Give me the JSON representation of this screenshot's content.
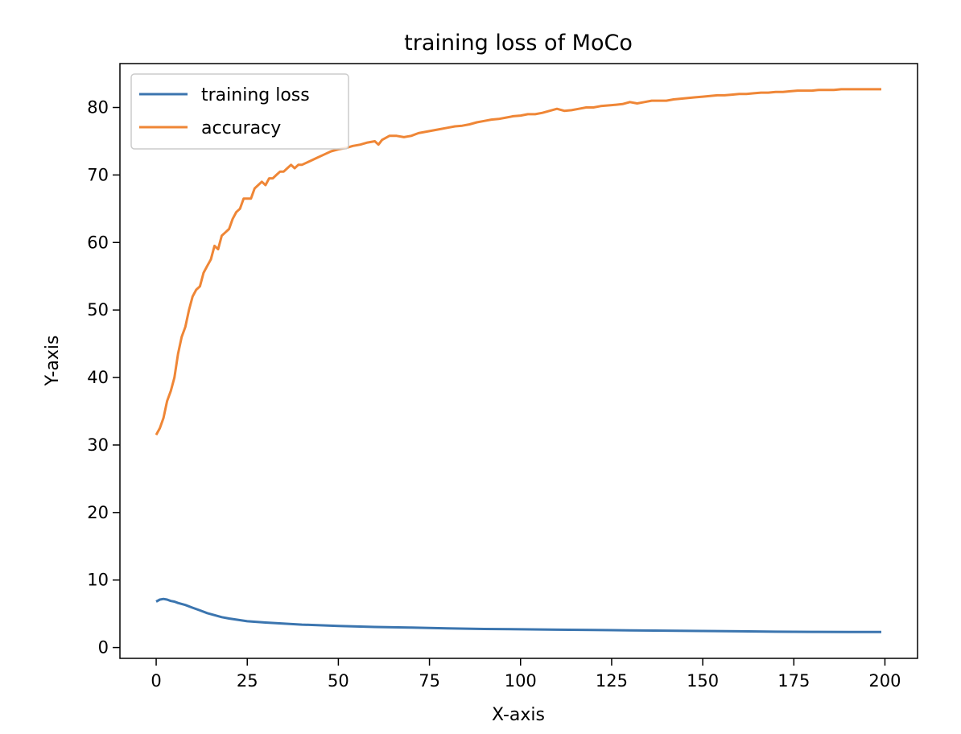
{
  "chart_data": {
    "type": "line",
    "title": "training loss of MoCo",
    "xlabel": "X-axis",
    "ylabel": "Y-axis",
    "xlim": [
      -9.95,
      208.95
    ],
    "ylim": [
      -1.6,
      86.5
    ],
    "xticks": [
      0,
      25,
      50,
      75,
      100,
      125,
      150,
      175,
      200
    ],
    "yticks": [
      0,
      10,
      20,
      30,
      40,
      50,
      60,
      70,
      80
    ],
    "grid": false,
    "legend_position": "top-left",
    "series": [
      {
        "name": "training loss",
        "color": "#3b75af",
        "x": [
          0,
          1,
          2,
          3,
          4,
          5,
          6,
          8,
          10,
          12,
          14,
          16,
          18,
          20,
          25,
          30,
          40,
          50,
          60,
          70,
          80,
          90,
          100,
          110,
          120,
          130,
          140,
          150,
          160,
          170,
          180,
          190,
          199
        ],
        "values": [
          6.8,
          7.1,
          7.2,
          7.1,
          6.9,
          6.8,
          6.6,
          6.3,
          5.9,
          5.5,
          5.1,
          4.8,
          4.5,
          4.3,
          3.9,
          3.7,
          3.4,
          3.2,
          3.05,
          2.95,
          2.85,
          2.75,
          2.7,
          2.65,
          2.6,
          2.55,
          2.5,
          2.45,
          2.4,
          2.35,
          2.32,
          2.3,
          2.3
        ]
      },
      {
        "name": "accuracy",
        "color": "#ef8636",
        "x": [
          0,
          1,
          2,
          3,
          4,
          5,
          6,
          7,
          8,
          9,
          10,
          11,
          12,
          13,
          14,
          15,
          16,
          17,
          18,
          19,
          20,
          21,
          22,
          23,
          24,
          25,
          26,
          27,
          28,
          29,
          30,
          31,
          32,
          33,
          34,
          35,
          36,
          37,
          38,
          39,
          40,
          42,
          44,
          46,
          48,
          50,
          52,
          54,
          56,
          58,
          60,
          61,
          62,
          64,
          66,
          68,
          70,
          72,
          75,
          78,
          80,
          82,
          84,
          86,
          88,
          90,
          92,
          94,
          96,
          98,
          100,
          102,
          104,
          106,
          108,
          110,
          112,
          114,
          116,
          118,
          120,
          122,
          124,
          126,
          128,
          130,
          132,
          134,
          136,
          138,
          140,
          142,
          144,
          146,
          148,
          150,
          152,
          154,
          156,
          158,
          160,
          162,
          164,
          166,
          168,
          170,
          172,
          174,
          176,
          178,
          180,
          182,
          184,
          186,
          188,
          190,
          192,
          194,
          196,
          199
        ],
        "values": [
          31.5,
          32.5,
          34.0,
          36.5,
          38.0,
          40.0,
          43.5,
          46.0,
          47.5,
          50.0,
          52.0,
          53.0,
          53.5,
          55.5,
          56.5,
          57.5,
          59.5,
          59.0,
          61.0,
          61.5,
          62.0,
          63.5,
          64.5,
          65.0,
          66.5,
          66.5,
          66.5,
          68.0,
          68.5,
          69.0,
          68.5,
          69.5,
          69.5,
          70.0,
          70.5,
          70.5,
          71.0,
          71.5,
          71.0,
          71.5,
          71.5,
          72.0,
          72.5,
          73.0,
          73.5,
          73.8,
          74.0,
          74.3,
          74.5,
          74.8,
          75.0,
          74.5,
          75.2,
          75.8,
          75.8,
          75.6,
          75.8,
          76.2,
          76.5,
          76.8,
          77.0,
          77.2,
          77.3,
          77.5,
          77.8,
          78.0,
          78.2,
          78.3,
          78.5,
          78.7,
          78.8,
          79.0,
          79.0,
          79.2,
          79.5,
          79.8,
          79.5,
          79.6,
          79.8,
          80.0,
          80.0,
          80.2,
          80.3,
          80.4,
          80.5,
          80.8,
          80.6,
          80.8,
          81.0,
          81.0,
          81.0,
          81.2,
          81.3,
          81.4,
          81.5,
          81.6,
          81.7,
          81.8,
          81.8,
          81.9,
          82.0,
          82.0,
          82.1,
          82.2,
          82.2,
          82.3,
          82.3,
          82.4,
          82.5,
          82.5,
          82.5,
          82.6,
          82.6,
          82.6,
          82.7,
          82.7,
          82.7,
          82.7,
          82.7,
          82.7
        ]
      }
    ]
  }
}
